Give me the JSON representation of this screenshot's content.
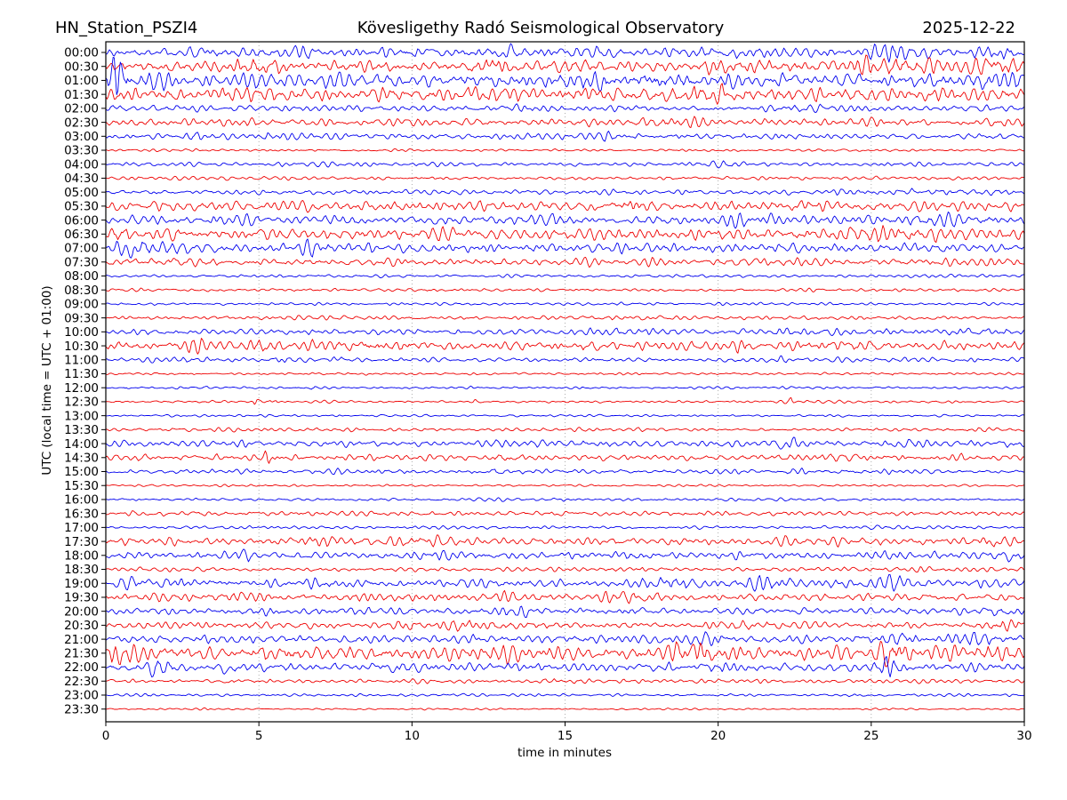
{
  "colors": {
    "trace_blue": "#0000ee",
    "trace_red": "#ee0000",
    "grid": "#999999",
    "frame": "#000000",
    "text": "#000000",
    "background": "#ffffff"
  },
  "chart_data": {
    "type": "line",
    "subtype": "seismogram-dayplot-helicorder",
    "station": "HN_Station_PSZI4",
    "observatory": "Kövesligethy Radó Seismological Observatory",
    "date": "2025-12-22",
    "xlabel": "time in minutes",
    "ylabel": "UTC (local time = UTC + 01:00)",
    "x_range": [
      0,
      30
    ],
    "x_ticks": [
      0,
      5,
      10,
      15,
      20,
      25,
      30
    ],
    "grid_minutes": [
      5,
      10,
      15,
      20,
      25
    ],
    "minutes_per_row": 30,
    "row_count": 48,
    "legend": "none",
    "rows": [
      {
        "time": "00:00",
        "color": "blue",
        "amp": 0.5,
        "bursts": [
          {
            "t": 6.0,
            "w": 0.5,
            "a": 0.4
          },
          {
            "t": 13.2,
            "w": 0.8,
            "a": 0.4
          },
          {
            "t": 20.5,
            "w": 0.8,
            "a": 0.3
          },
          {
            "t": 25.7,
            "w": 0.4,
            "a": 1.1
          },
          {
            "t": 29.3,
            "w": 0.3,
            "a": 0.8
          }
        ]
      },
      {
        "time": "00:30",
        "color": "red",
        "amp": 0.58,
        "bursts": [
          {
            "t": 5.0,
            "w": 0.5,
            "a": 1.0
          },
          {
            "t": 12.6,
            "w": 0.6,
            "a": 0.5
          },
          {
            "t": 21.0,
            "w": 1.0,
            "a": 0.4
          },
          {
            "t": 26.0,
            "w": 1.2,
            "a": 0.7
          },
          {
            "t": 29.0,
            "w": 0.5,
            "a": 0.8
          }
        ]
      },
      {
        "time": "01:00",
        "color": "blue",
        "amp": 0.68,
        "bursts": [
          {
            "t": 0.4,
            "w": 0.18,
            "a": 3.3
          },
          {
            "t": 16.0,
            "w": 1.0,
            "a": 0.4
          },
          {
            "t": 18.5,
            "w": 0.8,
            "a": 0.5
          },
          {
            "t": 28.5,
            "w": 0.8,
            "a": 0.4
          }
        ]
      },
      {
        "time": "01:30",
        "color": "red",
        "amp": 0.68,
        "bursts": [
          {
            "t": 12.0,
            "w": 1.0,
            "a": 0.35
          },
          {
            "t": 19.5,
            "w": 0.6,
            "a": 0.5
          }
        ]
      },
      {
        "time": "02:00",
        "color": "blue",
        "amp": 0.3,
        "bursts": [
          {
            "t": 13.5,
            "w": 0.4,
            "a": 0.5
          },
          {
            "t": 22.5,
            "w": 0.5,
            "a": 0.4
          }
        ]
      },
      {
        "time": "02:30",
        "color": "red",
        "amp": 0.36,
        "bursts": [
          {
            "t": 18.5,
            "w": 0.8,
            "a": 0.4
          }
        ]
      },
      {
        "time": "03:00",
        "color": "blue",
        "amp": 0.28,
        "bursts": [
          {
            "t": 3.0,
            "w": 0.3,
            "a": 0.7
          },
          {
            "t": 5.7,
            "w": 0.4,
            "a": 0.8
          },
          {
            "t": 16.5,
            "w": 0.4,
            "a": 0.5
          }
        ]
      },
      {
        "time": "03:30",
        "color": "red",
        "amp": 0.13,
        "bursts": []
      },
      {
        "time": "04:00",
        "color": "blue",
        "amp": 0.19,
        "bursts": [
          {
            "t": 20.3,
            "w": 0.4,
            "a": 0.7
          }
        ]
      },
      {
        "time": "04:30",
        "color": "red",
        "amp": 0.17,
        "bursts": []
      },
      {
        "time": "05:00",
        "color": "blue",
        "amp": 0.24,
        "bursts": [
          {
            "t": 24.5,
            "w": 0.6,
            "a": 0.6
          },
          {
            "t": 27.0,
            "w": 0.8,
            "a": 0.7
          },
          {
            "t": 29.3,
            "w": 0.4,
            "a": 0.6
          }
        ]
      },
      {
        "time": "05:30",
        "color": "red",
        "amp": 0.44,
        "bursts": [
          {
            "t": 17.0,
            "w": 0.5,
            "a": 0.8
          },
          {
            "t": 22.5,
            "w": 0.8,
            "a": 0.4
          }
        ]
      },
      {
        "time": "06:00",
        "color": "blue",
        "amp": 0.44,
        "bursts": [
          {
            "t": 14.5,
            "w": 0.5,
            "a": 0.5
          },
          {
            "t": 21.0,
            "w": 0.6,
            "a": 0.6
          },
          {
            "t": 27.0,
            "w": 1.0,
            "a": 0.5
          }
        ]
      },
      {
        "time": "06:30",
        "color": "red",
        "amp": 0.54,
        "bursts": [
          {
            "t": 0.3,
            "w": 0.3,
            "a": 0.8
          },
          {
            "t": 25.5,
            "w": 1.0,
            "a": 0.4
          }
        ]
      },
      {
        "time": "07:00",
        "color": "blue",
        "amp": 0.48,
        "bursts": [
          {
            "t": 1.0,
            "w": 0.4,
            "a": 1.2
          },
          {
            "t": 6.5,
            "w": 0.8,
            "a": 0.4
          }
        ]
      },
      {
        "time": "07:30",
        "color": "red",
        "amp": 0.36,
        "bursts": [
          {
            "t": 2.0,
            "w": 0.5,
            "a": 0.5
          }
        ]
      },
      {
        "time": "08:00",
        "color": "blue",
        "amp": 0.15,
        "bursts": []
      },
      {
        "time": "08:30",
        "color": "red",
        "amp": 0.15,
        "bursts": []
      },
      {
        "time": "09:00",
        "color": "blue",
        "amp": 0.13,
        "bursts": [
          {
            "t": 16.8,
            "w": 0.08,
            "a": 1.6
          }
        ]
      },
      {
        "time": "09:30",
        "color": "red",
        "amp": 0.19,
        "bursts": [
          {
            "t": 16.5,
            "w": 0.8,
            "a": 0.5
          }
        ]
      },
      {
        "time": "10:00",
        "color": "blue",
        "amp": 0.28,
        "bursts": [
          {
            "t": 17.0,
            "w": 1.0,
            "a": 0.5
          },
          {
            "t": 23.0,
            "w": 1.4,
            "a": 0.5
          },
          {
            "t": 28.7,
            "w": 0.8,
            "a": 0.6
          }
        ]
      },
      {
        "time": "10:30",
        "color": "red",
        "amp": 0.42,
        "bursts": [
          {
            "t": 3.0,
            "w": 0.3,
            "a": 0.8
          },
          {
            "t": 5.2,
            "w": 0.3,
            "a": 1.0
          },
          {
            "t": 8.7,
            "w": 1.0,
            "a": 0.6
          },
          {
            "t": 15.8,
            "w": 0.3,
            "a": 0.8
          },
          {
            "t": 20.8,
            "w": 0.15,
            "a": 1.2
          },
          {
            "t": 24.0,
            "w": 0.5,
            "a": 0.5
          }
        ]
      },
      {
        "time": "11:00",
        "color": "blue",
        "amp": 0.21,
        "bursts": [
          {
            "t": 2.8,
            "w": 0.3,
            "a": 0.9
          },
          {
            "t": 5.6,
            "w": 0.2,
            "a": 1.3
          },
          {
            "t": 7.6,
            "w": 0.5,
            "a": 0.5
          },
          {
            "t": 22.0,
            "w": 0.15,
            "a": 0.9
          }
        ]
      },
      {
        "time": "11:30",
        "color": "red",
        "amp": 0.12,
        "bursts": [
          {
            "t": 8.6,
            "w": 0.06,
            "a": 2.2
          },
          {
            "t": 25.7,
            "w": 0.06,
            "a": 2.6
          }
        ]
      },
      {
        "time": "12:00",
        "color": "blue",
        "amp": 0.12,
        "bursts": [
          {
            "t": 0.7,
            "w": 0.08,
            "a": 2.5
          },
          {
            "t": 3.3,
            "w": 0.06,
            "a": 1.5
          },
          {
            "t": 6.8,
            "w": 0.07,
            "a": 2.2
          }
        ]
      },
      {
        "time": "12:30",
        "color": "red",
        "amp": 0.12,
        "bursts": [
          {
            "t": 4.9,
            "w": 0.07,
            "a": 3.0
          },
          {
            "t": 5.5,
            "w": 0.09,
            "a": 3.0
          },
          {
            "t": 12.1,
            "w": 0.06,
            "a": 2.6
          },
          {
            "t": 22.4,
            "w": 0.06,
            "a": 2.0
          }
        ]
      },
      {
        "time": "13:00",
        "color": "blue",
        "amp": 0.11,
        "bursts": []
      },
      {
        "time": "13:30",
        "color": "red",
        "amp": 0.17,
        "bursts": [
          {
            "t": 28.5,
            "w": 0.5,
            "a": 0.5
          }
        ]
      },
      {
        "time": "14:00",
        "color": "blue",
        "amp": 0.3,
        "bursts": [
          {
            "t": 14.0,
            "w": 1.0,
            "a": 0.4
          },
          {
            "t": 22.2,
            "w": 0.3,
            "a": 1.0
          },
          {
            "t": 26.0,
            "w": 1.0,
            "a": 0.4
          }
        ]
      },
      {
        "time": "14:30",
        "color": "red",
        "amp": 0.3,
        "bursts": [
          {
            "t": 5.3,
            "w": 0.15,
            "a": 1.5
          },
          {
            "t": 13.0,
            "w": 0.2,
            "a": 1.2
          },
          {
            "t": 24.0,
            "w": 0.8,
            "a": 0.4
          }
        ]
      },
      {
        "time": "15:00",
        "color": "blue",
        "amp": 0.23,
        "bursts": [
          {
            "t": 12.7,
            "w": 0.1,
            "a": 1.3
          },
          {
            "t": 22.3,
            "w": 0.3,
            "a": 0.6
          }
        ]
      },
      {
        "time": "15:30",
        "color": "red",
        "amp": 0.1,
        "bursts": []
      },
      {
        "time": "16:00",
        "color": "blue",
        "amp": 0.15,
        "bursts": [
          {
            "t": 15.0,
            "w": 0.3,
            "a": 0.6
          }
        ]
      },
      {
        "time": "16:30",
        "color": "red",
        "amp": 0.23,
        "bursts": [
          {
            "t": 14.8,
            "w": 0.5,
            "a": 0.4
          }
        ]
      },
      {
        "time": "17:00",
        "color": "blue",
        "amp": 0.15,
        "bursts": [
          {
            "t": 25.0,
            "w": 0.3,
            "a": 0.7
          }
        ]
      },
      {
        "time": "17:30",
        "color": "red",
        "amp": 0.38,
        "bursts": [
          {
            "t": 7.0,
            "w": 0.5,
            "a": 0.5
          },
          {
            "t": 10.0,
            "w": 1.0,
            "a": 0.4
          },
          {
            "t": 29.0,
            "w": 0.3,
            "a": 0.8
          }
        ]
      },
      {
        "time": "18:00",
        "color": "blue",
        "amp": 0.36,
        "bursts": [
          {
            "t": 4.5,
            "w": 0.3,
            "a": 0.6
          },
          {
            "t": 10.5,
            "w": 1.0,
            "a": 0.4
          },
          {
            "t": 25.5,
            "w": 0.3,
            "a": 0.6
          },
          {
            "t": 29.5,
            "w": 0.3,
            "a": 0.8
          }
        ]
      },
      {
        "time": "18:30",
        "color": "red",
        "amp": 0.2,
        "bursts": [
          {
            "t": 17.5,
            "w": 0.2,
            "a": 1.0
          },
          {
            "t": 26.5,
            "w": 0.3,
            "a": 0.5
          }
        ]
      },
      {
        "time": "19:00",
        "color": "blue",
        "amp": 0.42,
        "bursts": [
          {
            "t": 0.8,
            "w": 0.4,
            "a": 0.6
          },
          {
            "t": 2.5,
            "w": 0.4,
            "a": 0.5
          },
          {
            "t": 18.7,
            "w": 0.4,
            "a": 1.0
          },
          {
            "t": 21.5,
            "w": 0.5,
            "a": 0.8
          },
          {
            "t": 25.7,
            "w": 0.4,
            "a": 0.9
          }
        ]
      },
      {
        "time": "19:30",
        "color": "red",
        "amp": 0.38,
        "bursts": [
          {
            "t": 4.3,
            "w": 0.4,
            "a": 0.8
          },
          {
            "t": 13.0,
            "w": 0.6,
            "a": 0.5
          },
          {
            "t": 17.0,
            "w": 0.6,
            "a": 0.5
          }
        ]
      },
      {
        "time": "20:00",
        "color": "blue",
        "amp": 0.33,
        "bursts": [
          {
            "t": 5.5,
            "w": 0.3,
            "a": 0.6
          },
          {
            "t": 13.5,
            "w": 0.6,
            "a": 0.6
          },
          {
            "t": 17.0,
            "w": 0.4,
            "a": 0.5
          },
          {
            "t": 29.0,
            "w": 0.4,
            "a": 0.9
          }
        ]
      },
      {
        "time": "20:30",
        "color": "red",
        "amp": 0.33,
        "bursts": [
          {
            "t": 9.7,
            "w": 0.3,
            "a": 0.8
          },
          {
            "t": 11.5,
            "w": 0.8,
            "a": 0.5
          },
          {
            "t": 21.3,
            "w": 0.5,
            "a": 0.7
          },
          {
            "t": 29.3,
            "w": 0.4,
            "a": 0.9
          }
        ]
      },
      {
        "time": "21:00",
        "color": "blue",
        "amp": 0.38,
        "bursts": [
          {
            "t": 19.8,
            "w": 0.3,
            "a": 0.8
          },
          {
            "t": 25.8,
            "w": 0.5,
            "a": 1.0
          },
          {
            "t": 28.5,
            "w": 0.8,
            "a": 0.7
          }
        ]
      },
      {
        "time": "21:30",
        "color": "red",
        "amp": 0.6,
        "bursts": [
          {
            "t": 0.4,
            "w": 0.3,
            "a": 1.0
          },
          {
            "t": 6.0,
            "w": 1.0,
            "a": 0.4
          },
          {
            "t": 13.0,
            "w": 0.8,
            "a": 0.4
          },
          {
            "t": 19.5,
            "w": 0.8,
            "a": 1.0
          },
          {
            "t": 25.7,
            "w": 0.4,
            "a": 1.5
          },
          {
            "t": 29.0,
            "w": 0.5,
            "a": 0.6
          }
        ]
      },
      {
        "time": "22:00",
        "color": "blue",
        "amp": 0.4,
        "bursts": [
          {
            "t": 1.7,
            "w": 0.4,
            "a": 1.2
          },
          {
            "t": 4.0,
            "w": 0.3,
            "a": 0.8
          },
          {
            "t": 9.6,
            "w": 0.3,
            "a": 0.9
          },
          {
            "t": 20.0,
            "w": 0.5,
            "a": 0.5
          },
          {
            "t": 25.5,
            "w": 0.2,
            "a": 1.5
          }
        ]
      },
      {
        "time": "22:30",
        "color": "red",
        "amp": 0.19,
        "bursts": [
          {
            "t": 4.2,
            "w": 0.2,
            "a": 1.0
          },
          {
            "t": 14.6,
            "w": 0.15,
            "a": 1.3
          },
          {
            "t": 21.0,
            "w": 0.4,
            "a": 0.4
          }
        ]
      },
      {
        "time": "23:00",
        "color": "blue",
        "amp": 0.12,
        "bursts": [
          {
            "t": 1.4,
            "w": 0.2,
            "a": 1.3
          },
          {
            "t": 5.2,
            "w": 0.15,
            "a": 0.9
          },
          {
            "t": 11.5,
            "w": 0.15,
            "a": 0.9
          },
          {
            "t": 24.5,
            "w": 0.3,
            "a": 0.4
          }
        ]
      },
      {
        "time": "23:30",
        "color": "red",
        "amp": 0.08,
        "bursts": [
          {
            "t": 2.8,
            "w": 0.8,
            "a": 0.5
          },
          {
            "t": 12.5,
            "w": 0.3,
            "a": 0.4
          }
        ]
      }
    ]
  }
}
